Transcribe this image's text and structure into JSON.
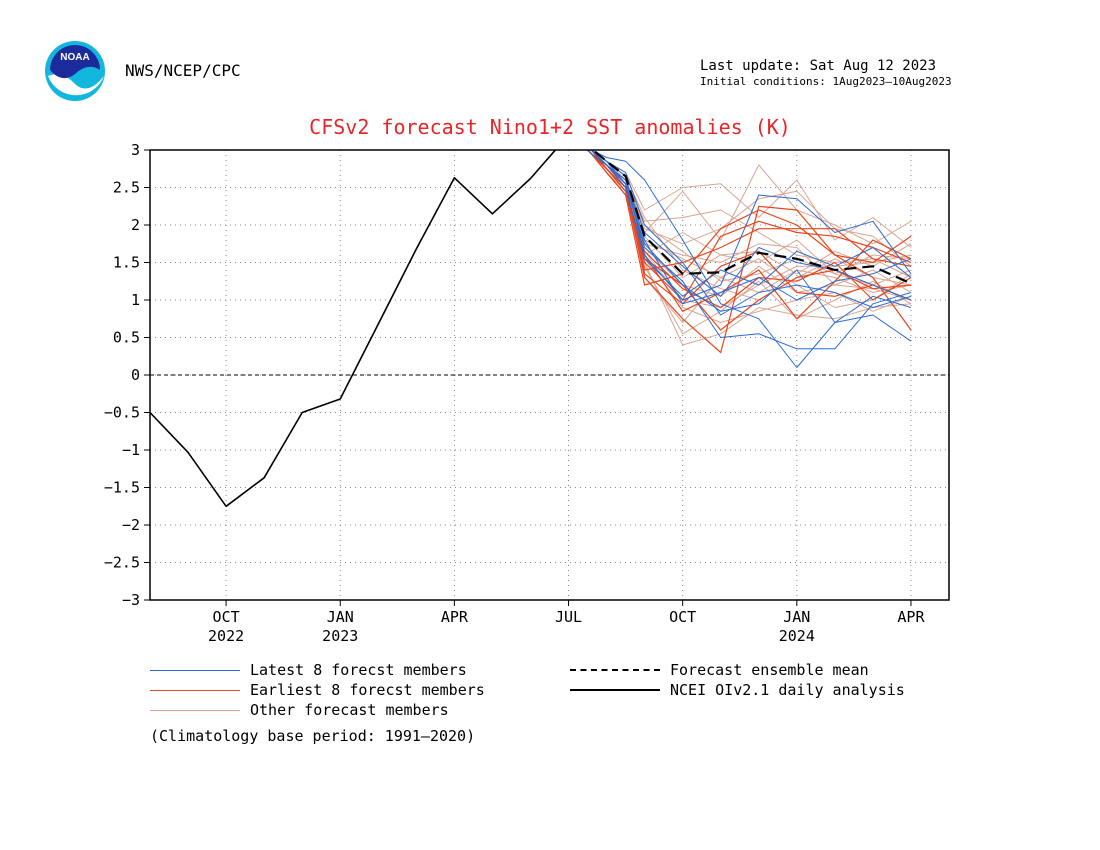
{
  "header": {
    "org": "NWS/NCEP/CPC",
    "last_update": "Last update: Sat Aug 12 2023",
    "initial_conditions": "Initial conditions: 1Aug2023–10Aug2023"
  },
  "logo": {
    "text": "NOAA",
    "icon": "noaa-logo-icon"
  },
  "footnote": "(Climatology base period: 1991–2020)",
  "colors": {
    "title": "#e8262a",
    "latest": "#2a6bd3",
    "earliest": "#e8461c",
    "other": "#d9a592",
    "mean": "#000000",
    "analysis": "#000000"
  },
  "chart_data": {
    "type": "line",
    "title": "CFSv2 forecast Nino1+2 SST anomalies (K)",
    "xlabel": "",
    "ylabel": "",
    "x_months_from_aug_2022": [
      0,
      1,
      2,
      3,
      4,
      5,
      6,
      7,
      8,
      9,
      10,
      11,
      12,
      13,
      14,
      15,
      16,
      17,
      18,
      19,
      20,
      21
    ],
    "xlim": [
      0,
      21
    ],
    "ylim": [
      -3,
      3
    ],
    "yticks": [
      "3",
      "2.5",
      "2",
      "1.5",
      "1",
      "0.5",
      "0",
      "−0.5",
      "−1",
      "−1.5",
      "−2",
      "−2.5",
      "−3"
    ],
    "ytick_values": [
      3,
      2.5,
      2,
      1.5,
      1,
      0.5,
      0,
      -0.5,
      -1,
      -1.5,
      -2,
      -2.5,
      -3
    ],
    "xticks": [
      {
        "x": 2,
        "label": "OCT",
        "year": "2022"
      },
      {
        "x": 5,
        "label": "JAN",
        "year": "2023"
      },
      {
        "x": 8,
        "label": "APR",
        "year": ""
      },
      {
        "x": 11,
        "label": "JUL",
        "year": ""
      },
      {
        "x": 14,
        "label": "OCT",
        "year": ""
      },
      {
        "x": 17,
        "label": "JAN",
        "year": "2024"
      },
      {
        "x": 20,
        "label": "APR",
        "year": ""
      }
    ],
    "grid": true,
    "zero_line": true,
    "legend": {
      "latest": "Latest 8 forecst members",
      "earliest": "Earliest 8 forecst members",
      "other": "Other forecast members",
      "mean": "Forecast ensemble mean",
      "analysis": "NCEI OIv2.1 daily analysis"
    },
    "analysis": {
      "x": [
        0,
        1,
        2,
        3,
        4,
        5,
        6,
        7,
        8,
        9,
        10,
        11,
        12
      ],
      "y": [
        -0.5,
        -1.03,
        -1.75,
        -1.37,
        -0.5,
        -0.32,
        0.68,
        1.68,
        2.63,
        2.15,
        2.62,
        3.2,
        3.3
      ]
    },
    "mean": {
      "x": [
        11.3,
        11.6,
        12,
        12.5,
        13,
        14,
        15,
        16,
        17,
        18,
        19,
        20
      ],
      "y": [
        3.1,
        3.02,
        2.85,
        2.65,
        1.85,
        1.35,
        1.37,
        1.63,
        1.55,
        1.4,
        1.45,
        1.22
      ]
    },
    "members_x": [
      11.3,
      11.6,
      12,
      12.5,
      13,
      14,
      15,
      16,
      17,
      18,
      19,
      20
    ],
    "latest_members": [
      [
        3.1,
        3.0,
        2.9,
        2.85,
        2.6,
        1.8,
        0.95,
        0.75,
        0.1,
        0.7,
        0.8,
        0.45
      ],
      [
        3.1,
        3.0,
        2.85,
        2.65,
        1.6,
        1.0,
        1.2,
        2.4,
        2.35,
        1.9,
        2.05,
        1.35
      ],
      [
        3.1,
        2.95,
        2.8,
        2.6,
        1.9,
        1.45,
        1.05,
        1.7,
        1.5,
        1.4,
        1.2,
        1.0
      ],
      [
        3.1,
        3.0,
        2.8,
        2.55,
        1.7,
        1.25,
        0.5,
        0.55,
        0.35,
        0.35,
        0.95,
        1.1
      ],
      [
        3.1,
        3.0,
        2.85,
        2.7,
        2.0,
        1.5,
        0.8,
        1.1,
        1.2,
        1.1,
        0.9,
        1.05
      ],
      [
        3.1,
        3.0,
        2.8,
        2.5,
        1.55,
        1.05,
        1.4,
        1.2,
        1.65,
        1.45,
        1.7,
        1.3
      ],
      [
        3.1,
        2.95,
        2.8,
        2.6,
        1.8,
        0.95,
        1.1,
        1.3,
        1.0,
        1.25,
        1.35,
        1.55
      ],
      [
        3.1,
        3.0,
        2.85,
        2.55,
        1.75,
        1.2,
        0.85,
        0.95,
        1.4,
        0.7,
        1.05,
        0.9
      ]
    ],
    "earliest_members": [
      [
        3.1,
        3.0,
        2.8,
        2.5,
        1.3,
        0.75,
        0.3,
        2.25,
        2.2,
        1.6,
        1.5,
        1.85
      ],
      [
        3.1,
        2.95,
        2.75,
        2.45,
        1.5,
        1.0,
        1.85,
        2.05,
        1.9,
        1.85,
        1.7,
        1.5
      ],
      [
        3.1,
        2.95,
        2.7,
        2.4,
        1.2,
        1.35,
        1.95,
        2.2,
        2.0,
        1.6,
        1.3,
        0.6
      ],
      [
        3.1,
        3.0,
        2.75,
        2.5,
        1.6,
        0.85,
        1.1,
        1.4,
        0.75,
        1.25,
        1.8,
        1.55
      ],
      [
        3.1,
        2.95,
        2.8,
        2.55,
        1.4,
        1.5,
        1.7,
        1.95,
        1.95,
        1.95,
        1.55,
        1.45
      ],
      [
        3.1,
        2.95,
        2.7,
        2.4,
        1.65,
        1.15,
        0.9,
        1.3,
        1.25,
        1.5,
        1.0,
        1.3
      ],
      [
        3.1,
        3.0,
        2.75,
        2.45,
        1.35,
        0.95,
        1.45,
        1.65,
        1.1,
        1.05,
        1.2,
        1.0
      ],
      [
        3.1,
        2.95,
        2.75,
        2.5,
        1.55,
        1.2,
        0.6,
        1.0,
        1.3,
        1.4,
        1.15,
        1.2
      ]
    ],
    "other_members": [
      [
        3.1,
        3.0,
        2.85,
        2.7,
        2.2,
        2.5,
        2.55,
        2.1,
        2.6,
        1.8,
        2.1,
        1.7
      ],
      [
        3.1,
        3.0,
        2.8,
        2.55,
        1.9,
        2.45,
        1.8,
        2.8,
        2.2,
        2.0,
        1.75,
        2.05
      ],
      [
        3.1,
        2.95,
        2.75,
        2.5,
        1.6,
        1.9,
        1.6,
        1.5,
        1.8,
        1.35,
        1.6,
        1.55
      ],
      [
        3.1,
        3.0,
        2.8,
        2.6,
        1.8,
        1.55,
        1.3,
        1.1,
        1.4,
        1.3,
        1.1,
        1.2
      ],
      [
        3.1,
        2.95,
        2.75,
        2.45,
        1.5,
        0.4,
        0.55,
        0.9,
        0.8,
        0.75,
        0.9,
        0.95
      ],
      [
        3.1,
        3.0,
        2.85,
        2.6,
        2.05,
        2.1,
        2.2,
        1.9,
        1.6,
        1.5,
        1.55,
        1.3
      ],
      [
        3.1,
        2.95,
        2.8,
        2.55,
        1.7,
        1.2,
        1.05,
        1.45,
        1.1,
        1.2,
        1.4,
        1.1
      ],
      [
        3.1,
        3.0,
        2.75,
        2.5,
        1.45,
        0.55,
        0.85,
        1.25,
        0.75,
        1.0,
        1.25,
        0.95
      ],
      [
        3.1,
        2.95,
        2.8,
        2.6,
        1.95,
        1.75,
        1.95,
        2.35,
        2.45,
        1.95,
        1.85,
        1.45
      ],
      [
        3.1,
        3.0,
        2.85,
        2.65,
        2.1,
        1.4,
        1.15,
        1.0,
        1.3,
        1.55,
        1.3,
        1.2
      ],
      [
        3.1,
        2.95,
        2.7,
        2.45,
        1.3,
        0.7,
        1.3,
        1.55,
        1.2,
        0.9,
        1.0,
        1.35
      ],
      [
        3.1,
        3.0,
        2.8,
        2.55,
        1.65,
        1.0,
        0.9,
        1.2,
        1.45,
        1.45,
        1.5,
        1.6
      ],
      [
        3.1,
        2.95,
        2.75,
        2.5,
        1.75,
        1.6,
        1.5,
        1.75,
        1.7,
        1.2,
        1.15,
        1.0
      ],
      [
        3.1,
        3.0,
        2.8,
        2.6,
        1.55,
        0.9,
        0.7,
        0.85,
        1.0,
        1.1,
        0.85,
        1.05
      ],
      [
        3.1,
        2.95,
        2.8,
        2.55,
        1.85,
        1.3,
        1.6,
        1.65,
        1.35,
        1.65,
        1.45,
        1.75
      ],
      [
        3.1,
        3.0,
        2.85,
        2.6,
        2.0,
        1.65,
        1.25,
        1.35,
        1.55,
        1.35,
        1.2,
        1.4
      ]
    ]
  }
}
